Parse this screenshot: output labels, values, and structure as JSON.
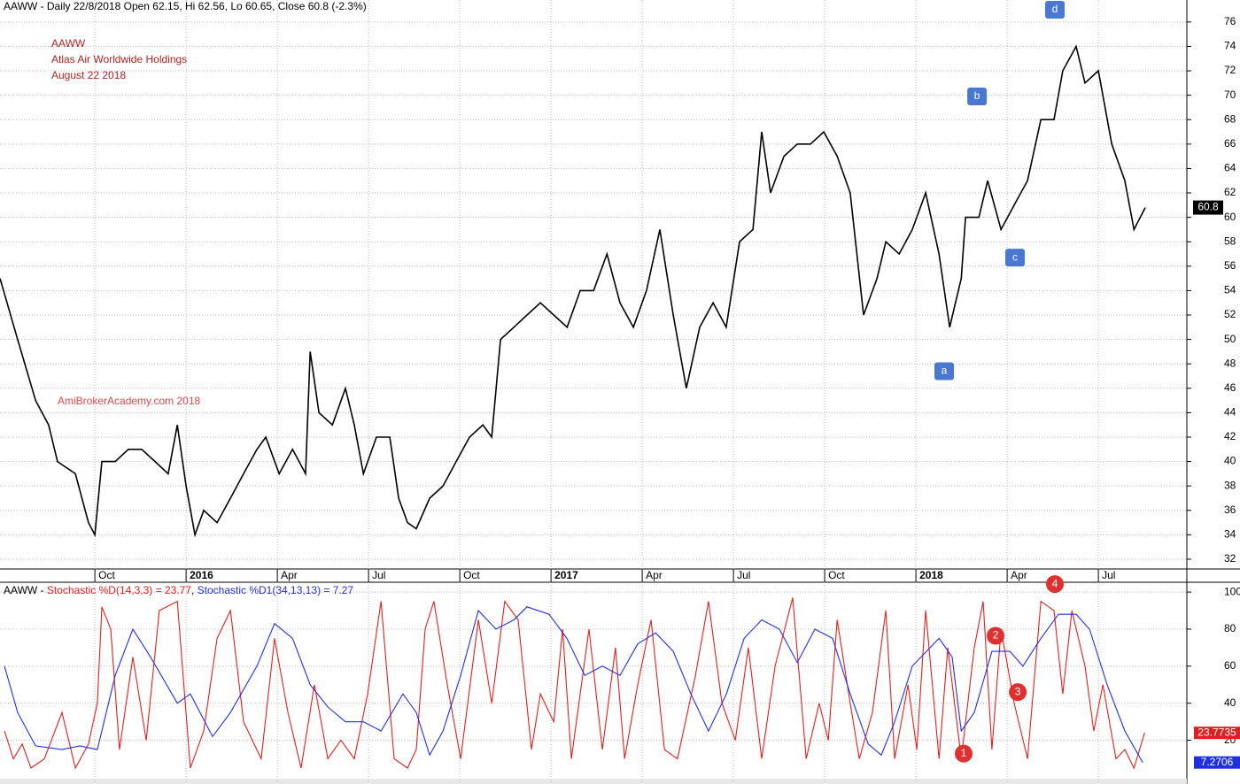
{
  "chart_data": [
    {
      "type": "line",
      "title": "AAWW - Daily 22/8/2018 Open 62.15, Hi 62.56, Lo 60.65, Close 60.8 (-2.3%)",
      "annotations": [
        "AAWW",
        "Atlas Air Worldwide Holdings",
        "August 22 2018"
      ],
      "watermark": "AmiBrokerAcademy.com  2018",
      "last_label": "60.8",
      "series": [
        {
          "color": "#000000",
          "x": [
            -6.12,
            -5.54,
            -4.95,
            -4.52,
            -4.23,
            -3.64,
            -3.21,
            -3.0,
            -2.77,
            -2.33,
            -1.9,
            -1.46,
            -1.02,
            -0.59,
            -0.29,
            0,
            0.29,
            0.58,
            1.02,
            1.46,
            1.89,
            2.33,
            2.62,
            3.06,
            3.5,
            3.93,
            4.08,
            4.37,
            4.81,
            5.24,
            5.53,
            5.83,
            6.26,
            6.7,
            6.99,
            7.28,
            7.57,
            8.01,
            8.45,
            8.88,
            9.32,
            9.76,
            10.05,
            10.34,
            10.78,
            11.21,
            11.65,
            12.09,
            12.53,
            12.96,
            13.4,
            13.84,
            14.27,
            14.71,
            15.14,
            15.58,
            16.02,
            16.45,
            16.89,
            17.33,
            17.76,
            18.2,
            18.64,
            18.93,
            19.22,
            19.66,
            20.1,
            20.53,
            20.97,
            21.41,
            21.84,
            22.28,
            22.72,
            23.01,
            23.45,
            23.88,
            24.32,
            24.76,
            25.11,
            25.49,
            25.63,
            26.07,
            26.36,
            26.8,
            27.23,
            27.67,
            28.11,
            28.54,
            28.83,
            29.27,
            29.56,
            30.0,
            30.44,
            30.87,
            31.17,
            31.54
          ],
          "values": [
            55,
            50,
            45,
            43,
            40,
            39,
            35,
            34,
            40,
            40,
            41,
            41,
            40,
            39,
            43,
            38,
            34,
            36,
            35,
            37,
            39,
            41,
            42,
            39,
            41,
            39,
            49,
            44,
            43,
            46,
            43,
            39,
            42,
            42,
            37,
            35,
            34.5,
            37,
            38,
            40,
            42,
            43,
            42,
            50,
            51,
            52,
            53,
            52,
            51,
            54,
            54,
            57,
            53,
            51,
            54,
            59,
            52,
            46,
            51,
            53,
            51,
            58,
            59,
            67,
            62,
            65,
            66,
            66,
            67,
            65,
            62,
            52,
            55,
            58,
            57,
            59,
            62,
            57,
            51,
            55,
            60,
            60,
            63,
            59,
            61,
            63,
            68,
            68,
            72,
            74,
            71,
            72,
            66,
            63,
            59,
            60.8
          ]
        }
      ],
      "wave_labels": [
        {
          "label": "a",
          "x": 24.93,
          "y": 47.4
        },
        {
          "label": "b",
          "x": 26.01,
          "y": 69.9
        },
        {
          "label": "c",
          "x": 27.26,
          "y": 56.7
        },
        {
          "label": "d",
          "x": 28.57,
          "y": 77.0
        }
      ],
      "xlim": [
        -6.12,
        32.91
      ],
      "ylim": [
        31.2,
        77.8
      ],
      "xticks": [
        {
          "value": -3,
          "label": "Oct"
        },
        {
          "value": 0,
          "label": "2016"
        },
        {
          "value": 3,
          "label": "Apr"
        },
        {
          "value": 6,
          "label": "Jul"
        },
        {
          "value": 9,
          "label": "Oct"
        },
        {
          "value": 12,
          "label": "2017"
        },
        {
          "value": 15,
          "label": "Apr"
        },
        {
          "value": 18,
          "label": "Jul"
        },
        {
          "value": 21,
          "label": "Oct"
        },
        {
          "value": 24,
          "label": "2018"
        },
        {
          "value": 27,
          "label": "Apr"
        },
        {
          "value": 30,
          "label": "Jul"
        }
      ],
      "yticks": [
        32,
        34,
        36,
        38,
        40,
        42,
        44,
        46,
        48,
        50,
        52,
        54,
        56,
        58,
        60,
        62,
        64,
        66,
        68,
        70,
        72,
        74,
        76
      ],
      "grid": true
    },
    {
      "type": "line",
      "title": "AAWW - ",
      "separator": ", ",
      "series": [
        {
          "name": "Stochastic %D(14,3,3) = 23.77",
          "color": "#e02020",
          "last_label": "23.7735",
          "x": [
            -5.97,
            -5.68,
            -5.39,
            -5.1,
            -4.66,
            -4.08,
            -3.64,
            -3.21,
            -2.92,
            -2.77,
            -2.48,
            -2.19,
            -1.75,
            -1.31,
            -0.88,
            -0.29,
            0.14,
            0.58,
            1.02,
            1.46,
            1.89,
            2.47,
            2.91,
            3.35,
            3.78,
            4.22,
            4.66,
            5.09,
            5.53,
            5.97,
            6.41,
            6.84,
            7.28,
            7.57,
            7.86,
            8.15,
            8.59,
            9.03,
            9.61,
            10.05,
            10.48,
            10.92,
            11.36,
            11.65,
            12.09,
            12.38,
            12.67,
            13.25,
            13.69,
            14.12,
            14.42,
            14.85,
            15.29,
            15.73,
            16.16,
            16.75,
            17.18,
            17.62,
            18.06,
            18.49,
            18.93,
            19.37,
            19.95,
            20.39,
            20.82,
            21.12,
            21.41,
            21.84,
            22.14,
            22.57,
            23.01,
            23.3,
            23.74,
            24.03,
            24.32,
            24.76,
            25.05,
            25.49,
            25.92,
            26.21,
            26.5,
            26.8,
            27.23,
            27.67,
            28.11,
            28.54,
            28.83,
            29.13,
            29.56,
            29.85,
            30.15,
            30.58,
            30.87,
            31.17,
            31.52
          ],
          "values": [
            25,
            10,
            18,
            5,
            10,
            35,
            5,
            18,
            40,
            92,
            80,
            15,
            65,
            20,
            90,
            95,
            5,
            25,
            75,
            90,
            30,
            10,
            75,
            35,
            5,
            50,
            10,
            20,
            10,
            45,
            95,
            10,
            5,
            15,
            80,
            95,
            50,
            10,
            85,
            40,
            95,
            85,
            15,
            45,
            30,
            80,
            10,
            80,
            15,
            70,
            10,
            50,
            85,
            15,
            10,
            55,
            95,
            40,
            20,
            70,
            10,
            60,
            97,
            10,
            40,
            20,
            85,
            40,
            10,
            35,
            90,
            10,
            50,
            15,
            90,
            10,
            70,
            10,
            70,
            95,
            15,
            80,
            40,
            10,
            95,
            90,
            45,
            90,
            60,
            25,
            50,
            10,
            15,
            5,
            24
          ]
        },
        {
          "name": "Stochastic %D1(34,13,13) = 7.27",
          "color": "#2030e0",
          "last_label": "7.2706",
          "x": [
            -5.97,
            -5.54,
            -4.95,
            -4.08,
            -3.5,
            -2.92,
            -2.33,
            -1.75,
            -1.17,
            -0.29,
            0.14,
            0.87,
            1.46,
            2.33,
            2.91,
            3.5,
            4.08,
            4.66,
            5.24,
            5.83,
            6.41,
            7.13,
            7.57,
            8.01,
            8.45,
            9.03,
            9.61,
            10.19,
            10.78,
            11.21,
            11.94,
            12.52,
            13.11,
            13.69,
            14.27,
            14.85,
            15.44,
            16.02,
            16.6,
            17.18,
            17.77,
            18.35,
            18.93,
            19.51,
            20.1,
            20.68,
            21.26,
            21.84,
            22.43,
            22.86,
            23.3,
            23.88,
            24.76,
            25.19,
            25.49,
            25.92,
            26.5,
            27.09,
            27.52,
            28.11,
            28.69,
            29.27,
            29.71,
            30.29,
            30.87,
            31.46
          ],
          "values": [
            60,
            35,
            17,
            15,
            17,
            15,
            55,
            80,
            65,
            40,
            45,
            22,
            35,
            60,
            83,
            75,
            50,
            38,
            30,
            30,
            25,
            45,
            35,
            12,
            25,
            55,
            90,
            80,
            85,
            92,
            88,
            75,
            55,
            60,
            55,
            72,
            78,
            68,
            45,
            25,
            45,
            75,
            85,
            80,
            62,
            80,
            75,
            45,
            18,
            12,
            30,
            60,
            75,
            65,
            25,
            35,
            68,
            68,
            60,
            75,
            88,
            88,
            80,
            50,
            25,
            8
          ]
        }
      ],
      "wave_labels": [
        {
          "label": "1",
          "x": 25.57,
          "y": 12.8
        },
        {
          "label": "2",
          "x": 26.62,
          "y": 76.4
        },
        {
          "label": "3",
          "x": 27.35,
          "y": 46
        },
        {
          "label": "4",
          "x": 28.57,
          "y": 104.3
        }
      ],
      "xlim": [
        -6.12,
        32.91
      ],
      "ylim": [
        -3.6,
        105.3
      ],
      "yticks": [
        20,
        40,
        60,
        80,
        100
      ],
      "grid": true
    }
  ]
}
